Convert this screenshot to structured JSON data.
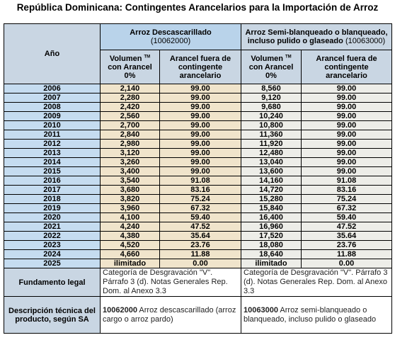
{
  "header": {
    "title": "República Dominicana: Contingentes Arancelarios para la Importación de Arroz"
  },
  "table": {
    "year_header": "Año",
    "groups": [
      {
        "name": "Arroz Descascarillado",
        "code": "(10062000)"
      },
      {
        "name": "Arroz Semi-blanqueado o blanqueado, incluso pulido o glaseado",
        "code": "(10063000)"
      }
    ],
    "columns": [
      {
        "label": "Volumen",
        "mark": "TM",
        "label2": "con Arancel 0%"
      },
      {
        "label": "Arancel fuera de contingente arancelario"
      },
      {
        "label": "Volumen",
        "mark": "TM",
        "label2": "con Arancel 0%"
      },
      {
        "label": "Arancel fuera de contingente arancelario"
      }
    ],
    "rows": [
      [
        "2006",
        "2,140",
        "99.00",
        "8,560",
        "99.00"
      ],
      [
        "2007",
        "2,280",
        "99.00",
        "9,120",
        "99.00"
      ],
      [
        "2008",
        "2,420",
        "99.00",
        "9,680",
        "99.00"
      ],
      [
        "2009",
        "2,560",
        "99.00",
        "10,240",
        "99.00"
      ],
      [
        "2010",
        "2,700",
        "99.00",
        "10,800",
        "99.00"
      ],
      [
        "2011",
        "2,840",
        "99.00",
        "11,360",
        "99.00"
      ],
      [
        "2012",
        "2,980",
        "99.00",
        "11,920",
        "99.00"
      ],
      [
        "2013",
        "3,120",
        "99.00",
        "12,480",
        "99.00"
      ],
      [
        "2014",
        "3,260",
        "99.00",
        "13,040",
        "99.00"
      ],
      [
        "2015",
        "3,400",
        "99.00",
        "13,600",
        "99.00"
      ],
      [
        "2016",
        "3,540",
        "91.08",
        "14,160",
        "91.08"
      ],
      [
        "2017",
        "3,680",
        "83.16",
        "14,720",
        "83.16"
      ],
      [
        "2018",
        "3,820",
        "75.24",
        "15,280",
        "75.24"
      ],
      [
        "2019",
        "3,960",
        "67.32",
        "15,840",
        "67.32"
      ],
      [
        "2020",
        "4,100",
        "59.40",
        "16,400",
        "59.40"
      ],
      [
        "2021",
        "4,240",
        "47.52",
        "16,960",
        "47.52"
      ],
      [
        "2022",
        "4,380",
        "35.64",
        "17,520",
        "35.64"
      ],
      [
        "2023",
        "4,520",
        "23.76",
        "18,080",
        "23.76"
      ],
      [
        "2024",
        "4,660",
        "11.88",
        "18,640",
        "11.88"
      ],
      [
        "2025",
        "ilimitado",
        "0.00",
        "ilimitado",
        "0.00"
      ]
    ],
    "legal": {
      "label": "Fundamento legal",
      "texts": [
        "Categoría de Desgravación \"V\". Párrafo 3 (d). Notas Generales Rep. Dom. al Anexo 3.3",
        "Categoría de Desgravación \"V\". Párrafo 3 (d). Notas Generales Rep. Dom. al Anexo 3.3"
      ]
    },
    "description": {
      "label": "Descripción técnica del producto, según SA",
      "items": [
        {
          "code": "10062000",
          "text": "Arroz descascarillado (arroz cargo o arroz pardo)"
        },
        {
          "code": "10063000",
          "text": "Arroz semi-blanqueado o blanqueado, incluso pulido o glaseado"
        }
      ]
    }
  }
}
